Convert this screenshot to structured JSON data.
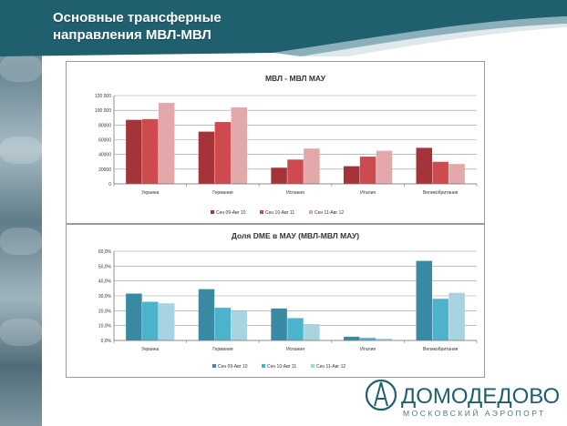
{
  "slide": {
    "title": "Основные трансферные\nнаправления МВЛ-МВЛ"
  },
  "logo": {
    "name": "ДОМОДЕДОВО",
    "subtitle": "МОСКОВСКИЙ АЭРОПОРТ"
  },
  "colors": {
    "header_teal": "#1f5f6e",
    "chart1": [
      "#a5343a",
      "#cd4a4f",
      "#e3a9aa"
    ],
    "chart2": [
      "#3a8aa3",
      "#4db3cd",
      "#a8d3e0"
    ]
  },
  "chart_data": [
    {
      "type": "bar",
      "title": "МВЛ - МВЛ МАУ",
      "categories": [
        "Украина",
        "Германия",
        "Испания",
        "Италия",
        "Великобритания"
      ],
      "series": [
        {
          "name": "Сен 09-Авг 10",
          "values": [
            87000,
            71000,
            22000,
            24000,
            49000
          ]
        },
        {
          "name": "Сен 10-Авг 11",
          "values": [
            88000,
            84000,
            33000,
            37000,
            30000
          ]
        },
        {
          "name": "Сен 11-Авг 12",
          "values": [
            110000,
            104000,
            48000,
            45000,
            27000
          ]
        }
      ],
      "yticks": [
        "0",
        "20000",
        "40000",
        "60000",
        "80000",
        "100 000",
        "120 000"
      ],
      "ylim": [
        0,
        120000
      ],
      "grid": true,
      "legend": "bottom"
    },
    {
      "type": "bar",
      "title": "Доля DME в МАУ (МВЛ-МВЛ МАУ)",
      "categories": [
        "Украина",
        "Германия",
        "Испания",
        "Италия",
        "Великобритания"
      ],
      "series": [
        {
          "name": "Сен 09-Авг 10",
          "values": [
            31.5,
            34.5,
            21.5,
            2.5,
            53.5
          ]
        },
        {
          "name": "Сен 10-Авг 11",
          "values": [
            26,
            22,
            15,
            1.7,
            28
          ]
        },
        {
          "name": "Сен 11-Авг 12",
          "values": [
            25,
            20,
            11,
            1.2,
            32
          ]
        }
      ],
      "yticks": [
        "0,0%",
        "10,0%",
        "20,0%",
        "30,0%",
        "40,0%",
        "50,0%",
        "60,0%"
      ],
      "ylim": [
        0,
        60
      ],
      "grid": true,
      "legend": "bottom"
    }
  ]
}
